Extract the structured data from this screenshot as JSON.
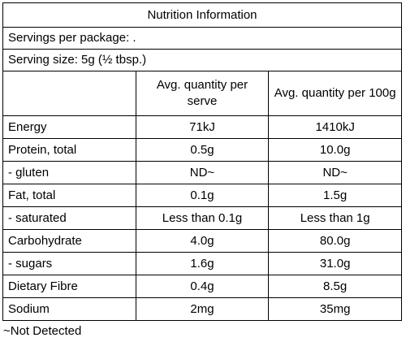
{
  "panel": {
    "title": "Nutrition Information",
    "servings_per_package": "Servings per package: .",
    "serving_size": "Serving size: 5g (½ tbsp.)"
  },
  "columns": {
    "name": "",
    "per_serve": "Avg. quantity per serve",
    "per_100g": "Avg. quantity per 100g"
  },
  "rows": [
    {
      "name": "Energy",
      "per_serve": "71kJ",
      "per_100g": "1410kJ"
    },
    {
      "name": "Protein, total",
      "per_serve": "0.5g",
      "per_100g": "10.0g"
    },
    {
      "name": "- gluten",
      "per_serve": "ND~",
      "per_100g": "ND~"
    },
    {
      "name": "Fat, total",
      "per_serve": "0.1g",
      "per_100g": "1.5g"
    },
    {
      "name": "- saturated",
      "per_serve": "Less than 0.1g",
      "per_100g": "Less than 1g"
    },
    {
      "name": "Carbohydrate",
      "per_serve": "4.0g",
      "per_100g": "80.0g"
    },
    {
      "name": "- sugars",
      "per_serve": "1.6g",
      "per_100g": "31.0g"
    },
    {
      "name": "Dietary Fibre",
      "per_serve": "0.4g",
      "per_100g": "8.5g"
    },
    {
      "name": "Sodium",
      "per_serve": "2mg",
      "per_100g": "35mg"
    }
  ],
  "footnote": "~Not Detected"
}
